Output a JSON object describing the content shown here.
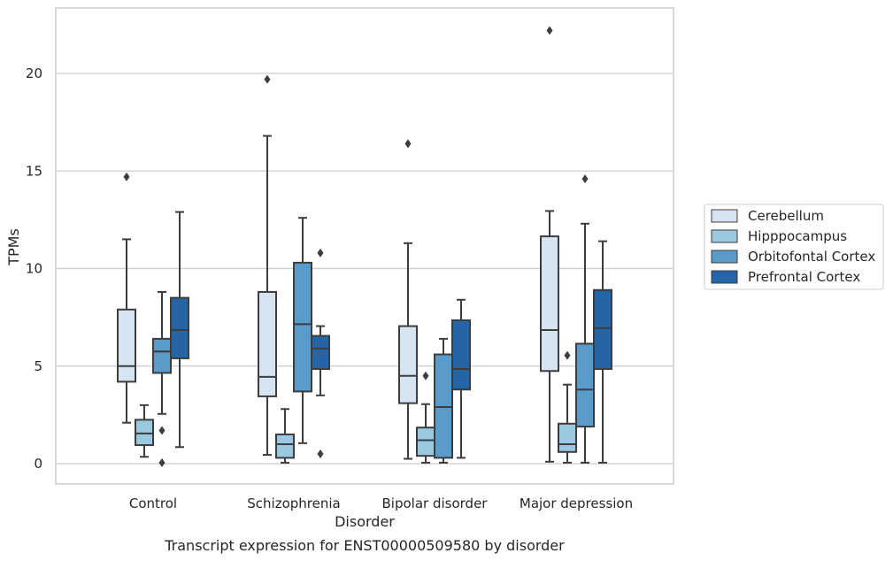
{
  "caption": "Transcript expression for ENST00000509580 by disorder",
  "chart_data": {
    "type": "boxplot",
    "title": "",
    "xlabel": "Disorder",
    "ylabel": "TPMs",
    "ylim": [
      -1.1,
      23.3
    ],
    "yticks": [
      0,
      5,
      10,
      15,
      20
    ],
    "grid": true,
    "legend_position": "right",
    "categories": [
      "Control",
      "Schizophrenia",
      "Bipolar disorder",
      "Major depression"
    ],
    "series": [
      {
        "name": "Cerebellum",
        "color": "#d6e4f1",
        "boxes": [
          {
            "whisker_low": 2.1,
            "q1": 4.2,
            "median": 5.0,
            "q3": 7.9,
            "whisker_high": 11.5,
            "outliers": [
              14.7
            ]
          },
          {
            "whisker_low": 0.45,
            "q1": 3.45,
            "median": 4.45,
            "q3": 8.8,
            "whisker_high": 16.8,
            "outliers": [
              19.7
            ]
          },
          {
            "whisker_low": 0.25,
            "q1": 3.1,
            "median": 4.5,
            "q3": 7.05,
            "whisker_high": 11.3,
            "outliers": [
              16.4
            ]
          },
          {
            "whisker_low": 0.1,
            "q1": 4.75,
            "median": 6.85,
            "q3": 11.65,
            "whisker_high": 12.95,
            "outliers": [
              22.2
            ]
          }
        ]
      },
      {
        "name": "Hipppocampus",
        "color": "#9ac8e0",
        "boxes": [
          {
            "whisker_low": 0.35,
            "q1": 0.95,
            "median": 1.55,
            "q3": 2.25,
            "whisker_high": 3.0,
            "outliers": []
          },
          {
            "whisker_low": 0.05,
            "q1": 0.3,
            "median": 1.0,
            "q3": 1.5,
            "whisker_high": 2.8,
            "outliers": []
          },
          {
            "whisker_low": 0.05,
            "q1": 0.4,
            "median": 1.2,
            "q3": 1.85,
            "whisker_high": 3.05,
            "outliers": [
              4.5
            ]
          },
          {
            "whisker_low": 0.05,
            "q1": 0.6,
            "median": 1.0,
            "q3": 2.05,
            "whisker_high": 4.05,
            "outliers": [
              5.55
            ]
          }
        ]
      },
      {
        "name": "Orbitofontal Cortex",
        "color": "#5a9cc9",
        "boxes": [
          {
            "whisker_low": 2.55,
            "q1": 4.65,
            "median": 5.75,
            "q3": 6.4,
            "whisker_high": 8.8,
            "outliers": [
              1.7,
              0.05
            ]
          },
          {
            "whisker_low": 1.05,
            "q1": 3.7,
            "median": 7.15,
            "q3": 10.3,
            "whisker_high": 12.6,
            "outliers": []
          },
          {
            "whisker_low": 0.05,
            "q1": 0.3,
            "median": 2.9,
            "q3": 5.6,
            "whisker_high": 6.4,
            "outliers": []
          },
          {
            "whisker_low": 0.05,
            "q1": 1.9,
            "median": 3.8,
            "q3": 6.15,
            "whisker_high": 12.3,
            "outliers": [
              14.6
            ]
          }
        ]
      },
      {
        "name": "Prefrontal Cortex",
        "color": "#2565a6",
        "boxes": [
          {
            "whisker_low": 0.85,
            "q1": 5.4,
            "median": 6.85,
            "q3": 8.5,
            "whisker_high": 12.9,
            "outliers": []
          },
          {
            "whisker_low": 3.5,
            "q1": 4.85,
            "median": 5.9,
            "q3": 6.55,
            "whisker_high": 7.05,
            "outliers": [
              10.8,
              0.5
            ]
          },
          {
            "whisker_low": 0.3,
            "q1": 3.8,
            "median": 4.85,
            "q3": 7.35,
            "whisker_high": 8.4,
            "outliers": []
          },
          {
            "whisker_low": 0.05,
            "q1": 4.85,
            "median": 6.95,
            "q3": 8.9,
            "whisker_high": 11.4,
            "outliers": []
          }
        ]
      }
    ]
  }
}
